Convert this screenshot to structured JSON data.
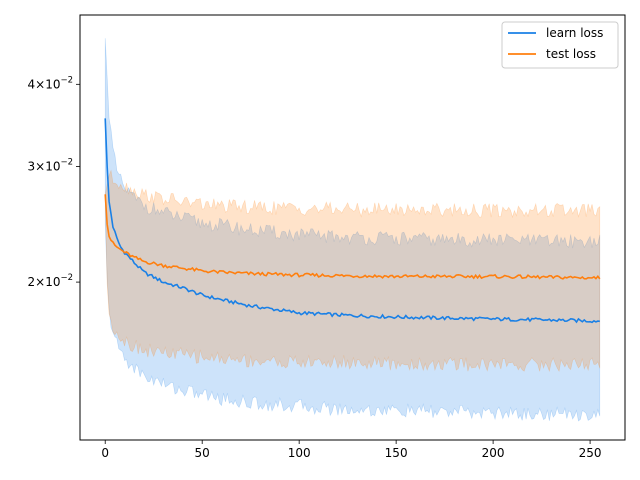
{
  "chart_data": {
    "type": "line",
    "title": "",
    "xlabel": "",
    "ylabel": "",
    "yscale": "log",
    "xlim": [
      -13,
      268
    ],
    "ylim": [
      0.0115,
      0.051
    ],
    "grid": false,
    "legend_position": "top-right",
    "x_ticks": [
      {
        "value": 0,
        "label": "0"
      },
      {
        "value": 50,
        "label": "50"
      },
      {
        "value": 100,
        "label": "100"
      },
      {
        "value": 150,
        "label": "150"
      },
      {
        "value": 200,
        "label": "200"
      },
      {
        "value": 250,
        "label": "250"
      }
    ],
    "y_ticks": [
      {
        "value": 0.02,
        "base": "2",
        "exp": "−2"
      },
      {
        "value": 0.03,
        "base": "3",
        "exp": "−2"
      },
      {
        "value": 0.04,
        "base": "4",
        "exp": "−2"
      }
    ],
    "x_key": [
      0,
      1,
      2,
      4,
      6,
      8,
      10,
      15,
      20,
      30,
      40,
      50,
      60,
      75,
      100,
      125,
      150,
      175,
      200,
      225,
      255
    ],
    "series": [
      {
        "name": "learn loss",
        "color": "#1a80e6",
        "band_color": "#1a80e6",
        "mean_key": [
          0.0355,
          0.03,
          0.0265,
          0.0243,
          0.0233,
          0.0226,
          0.0222,
          0.0214,
          0.0207,
          0.02,
          0.0196,
          0.0191,
          0.0188,
          0.0184,
          0.01795,
          0.0178,
          0.0177,
          0.01763,
          0.01757,
          0.01752,
          0.01745
        ],
        "upper_key": [
          0.047,
          0.042,
          0.036,
          0.0315,
          0.0295,
          0.0285,
          0.0278,
          0.0268,
          0.0262,
          0.0255,
          0.025,
          0.0246,
          0.0244,
          0.024,
          0.0236,
          0.0234,
          0.0233,
          0.0232,
          0.0232,
          0.0231,
          0.0231
        ],
        "lower_key": [
          0.0245,
          0.02,
          0.018,
          0.0168,
          0.0161,
          0.0157,
          0.0153,
          0.0148,
          0.0144,
          0.014,
          0.0137,
          0.0135,
          0.0133,
          0.0131,
          0.01295,
          0.0128,
          0.01275,
          0.0127,
          0.01265,
          0.0126,
          0.0126
        ]
      },
      {
        "name": "test loss",
        "color": "#ff7f0e",
        "band_color": "#ff7f0e",
        "mean_key": [
          0.0272,
          0.0245,
          0.0235,
          0.0229,
          0.0226,
          0.0224,
          0.0222,
          0.0218,
          0.0215,
          0.0212,
          0.021,
          0.0208,
          0.0207,
          0.0206,
          0.0205,
          0.02045,
          0.0204,
          0.0204,
          0.0204,
          0.02035,
          0.0203
        ],
        "upper_key": [
          0.0272,
          0.0285,
          0.029,
          0.0287,
          0.0285,
          0.0283,
          0.028,
          0.0276,
          0.0272,
          0.0268,
          0.0265,
          0.0263,
          0.0261,
          0.026,
          0.0259,
          0.0258,
          0.0258,
          0.0258,
          0.0257,
          0.0257,
          0.0257
        ],
        "lower_key": [
          0.0272,
          0.0195,
          0.018,
          0.0172,
          0.0168,
          0.0165,
          0.0163,
          0.016,
          0.0158,
          0.0156,
          0.0155,
          0.0154,
          0.0153,
          0.0152,
          0.0151,
          0.0151,
          0.015,
          0.015,
          0.015,
          0.015,
          0.015
        ]
      }
    ]
  }
}
